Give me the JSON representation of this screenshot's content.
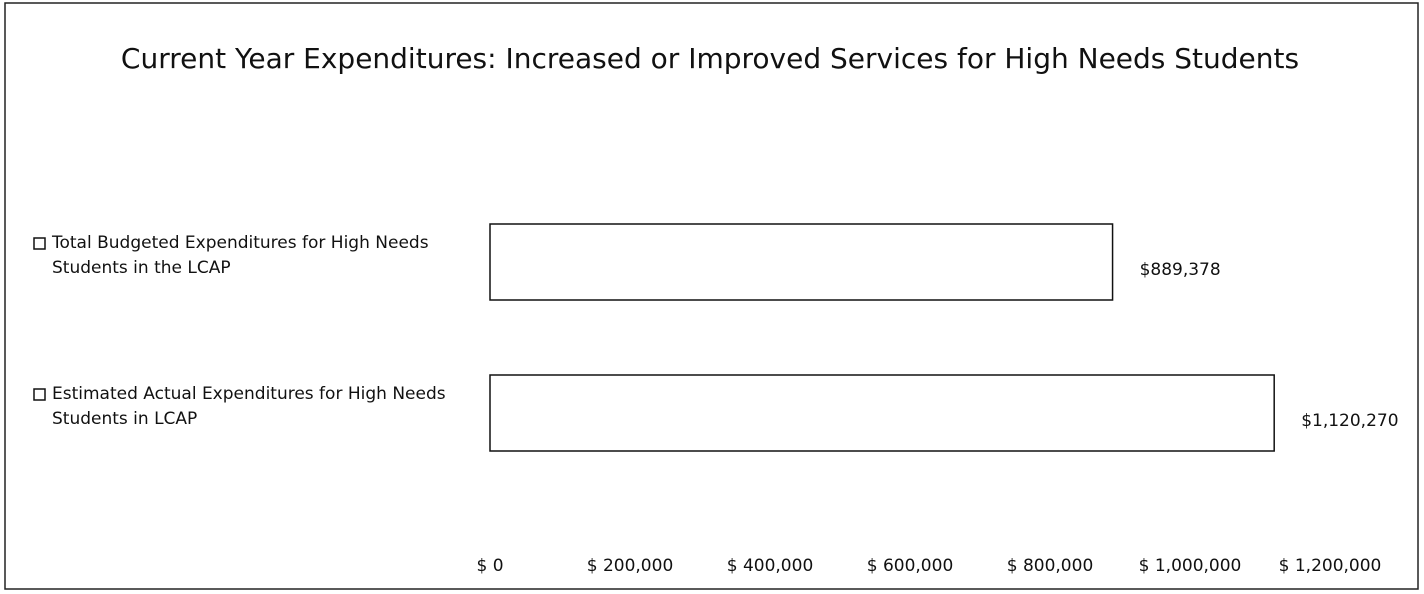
{
  "chart_data": {
    "type": "bar",
    "orientation": "horizontal",
    "title": "Current Year Expenditures: Increased or Improved Services for High Needs Students",
    "categories": [
      "Total Budgeted Expenditures for High Needs Students in the LCAP",
      "Estimated Actual Expenditures for High Needs Students in LCAP"
    ],
    "values": [
      889378,
      1120270
    ],
    "value_labels": [
      "$889,378",
      "$1,120,270"
    ],
    "color": "#ffffff",
    "xlim": [
      0,
      1200000
    ],
    "xticks": [
      {
        "value": 0,
        "label": "$ 0"
      },
      {
        "value": 200000,
        "label": "$ 200,000"
      },
      {
        "value": 400000,
        "label": "$ 400,000"
      },
      {
        "value": 600000,
        "label": "$ 600,000"
      },
      {
        "value": 800000,
        "label": "$ 800,000"
      },
      {
        "value": 1000000,
        "label": "$ 1,000,000"
      },
      {
        "value": 1200000,
        "label": "$ 1,200,000"
      }
    ],
    "grid": false
  }
}
